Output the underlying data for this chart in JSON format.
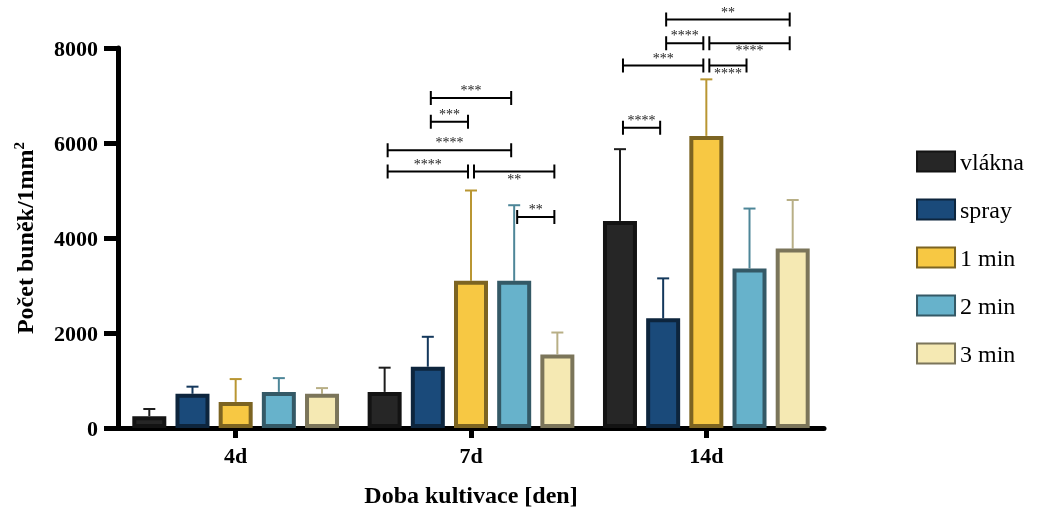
{
  "chart_data": {
    "type": "bar",
    "xlabel": "Doba kultivace [den]",
    "ylabel": "Počet buněk/1mm$^{2}$",
    "categories": [
      "4d",
      "7d",
      "14d"
    ],
    "series": [
      {
        "name": "vlákna",
        "color": "#262626",
        "values": [
          250,
          760,
          4360
        ],
        "errors": [
          [
            250,
            400
          ],
          [
            760,
            1270
          ],
          [
            4360,
            5870
          ]
        ]
      },
      {
        "name": "spray",
        "color": "#1a4a7a",
        "values": [
          720,
          1290,
          2310
        ],
        "errors": [
          [
            720,
            870
          ],
          [
            1290,
            1920
          ],
          [
            2310,
            3150
          ]
        ]
      },
      {
        "name": "1 min",
        "color": "#f7c843",
        "values": [
          550,
          3100,
          6150
        ],
        "errors": [
          [
            550,
            1030
          ],
          [
            3100,
            5000
          ],
          [
            6150,
            7340
          ]
        ]
      },
      {
        "name": "2 min",
        "color": "#67b2cb",
        "values": [
          760,
          3100,
          3360
        ],
        "errors": [
          [
            760,
            1050
          ],
          [
            3100,
            4690
          ],
          [
            3360,
            4620
          ]
        ]
      },
      {
        "name": "3 min",
        "color": "#f5e9b3",
        "values": [
          720,
          1550,
          3780
        ],
        "errors": [
          [
            720,
            840
          ],
          [
            1550,
            2010
          ],
          [
            3780,
            4800
          ]
        ]
      }
    ],
    "ylim": [
      0,
      8000
    ],
    "yticks": [
      0,
      2000,
      4000,
      6000,
      8000
    ],
    "grid": false,
    "legend": "right",
    "annotations": [
      "***",
      "***",
      "****",
      "****",
      "**",
      "**",
      "****",
      "***",
      "****",
      "****",
      "****",
      "**"
    ]
  }
}
